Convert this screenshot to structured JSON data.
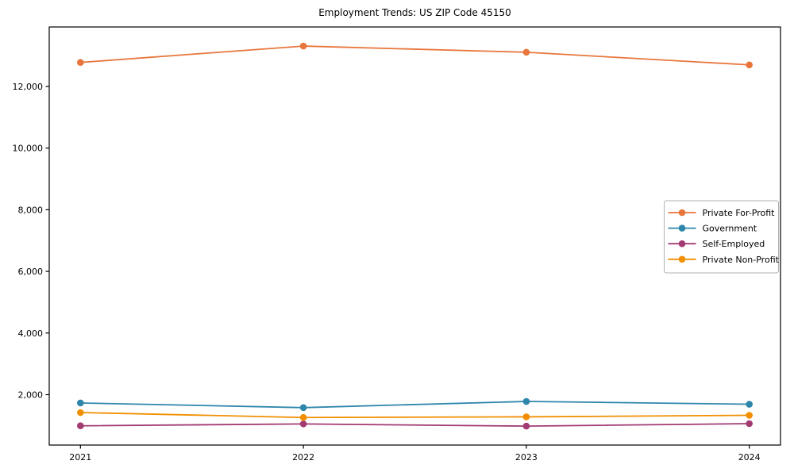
{
  "chart_data": {
    "type": "line",
    "title": "Employment Trends: US ZIP Code 45150",
    "xlabel": "",
    "ylabel": "",
    "x": [
      2021,
      2022,
      2023,
      2024
    ],
    "x_tick_labels": [
      "2021",
      "2022",
      "2023",
      "2024"
    ],
    "y_tick_values": [
      2000,
      4000,
      6000,
      8000,
      10000,
      12000
    ],
    "y_tick_labels": [
      "2,000",
      "4,000",
      "6,000",
      "8,000",
      "10,000",
      "12,000"
    ],
    "xlim": [
      2020.86,
      2024.14
    ],
    "ylim": [
      365,
      13930
    ],
    "grid": false,
    "legend_position": "center right",
    "background_color": "#ffffff",
    "axis_color": "#000000",
    "legend_border_color": "#b0b0b0",
    "series": [
      {
        "name": "Private For-Profit",
        "color": "#E8763C",
        "values": [
          12780,
          13310,
          13110,
          12700
        ]
      },
      {
        "name": "Government",
        "color": "#2E86AB",
        "values": [
          1730,
          1580,
          1780,
          1690
        ]
      },
      {
        "name": "Self-Employed",
        "color": "#A23B72",
        "values": [
          990,
          1050,
          980,
          1060
        ]
      },
      {
        "name": "Private Non-Profit",
        "color": "#F18F01",
        "values": [
          1420,
          1260,
          1280,
          1330
        ]
      }
    ]
  }
}
